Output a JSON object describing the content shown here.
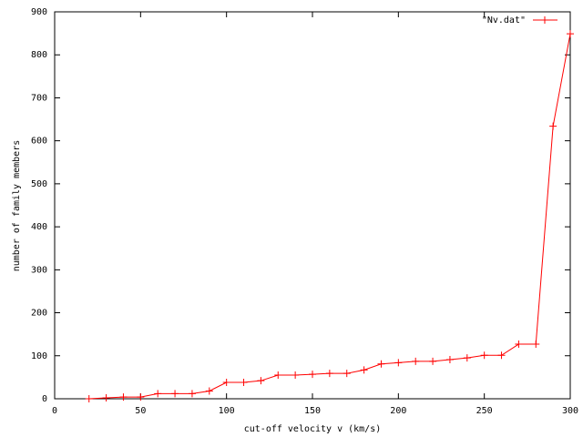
{
  "chart_data": {
    "type": "line",
    "xlabel": "cut-off velocity v (km/s)",
    "ylabel": "number of family members",
    "x": [
      20,
      30,
      40,
      50,
      60,
      70,
      80,
      90,
      100,
      110,
      120,
      130,
      140,
      150,
      160,
      170,
      180,
      190,
      200,
      210,
      220,
      230,
      240,
      250,
      260,
      270,
      280,
      290,
      300
    ],
    "series": [
      {
        "name": "\"Nv.dat\"",
        "color": "#ff0000",
        "values": [
          0,
          2,
          4,
          4,
          12,
          12,
          12,
          18,
          38,
          38,
          42,
          55,
          55,
          57,
          59,
          59,
          67,
          81,
          84,
          87,
          87,
          91,
          95,
          101,
          101,
          127,
          127,
          634,
          849
        ]
      }
    ],
    "xlim": [
      0,
      300
    ],
    "xticks": [
      0,
      50,
      100,
      150,
      200,
      250,
      300
    ],
    "ylim": [
      0,
      900
    ],
    "yticks": [
      0,
      100,
      200,
      300,
      400,
      500,
      600,
      700,
      800,
      900
    ],
    "legend": "top-right",
    "grid": false
  }
}
